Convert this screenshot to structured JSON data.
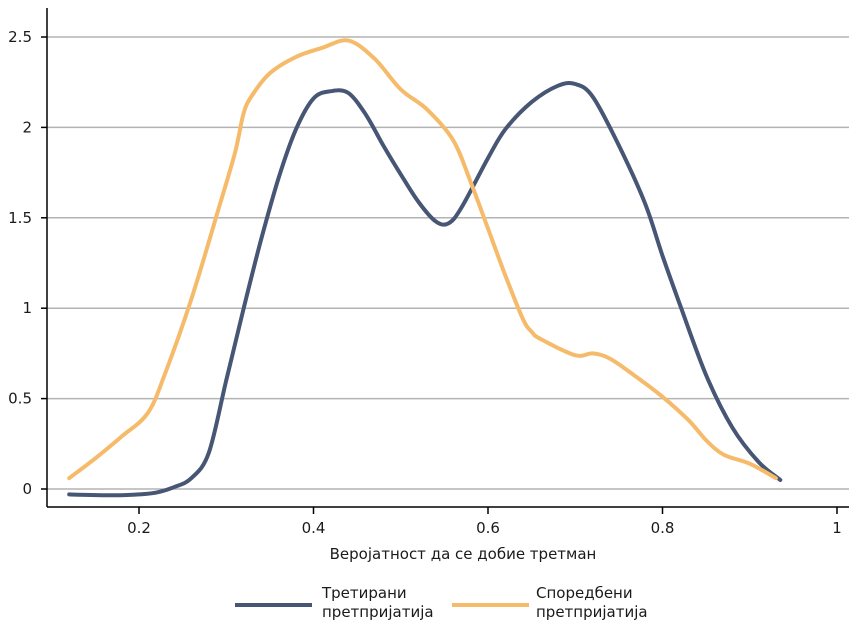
{
  "chart_data": {
    "type": "line",
    "title": "",
    "xlabel": "Веројатност да се добие третман",
    "ylabel": "",
    "xlim": [
      0.12,
      1.0
    ],
    "ylim": [
      -0.1,
      2.7
    ],
    "xticks": [
      {
        "value": 0.2,
        "label": "0.2"
      },
      {
        "value": 0.4,
        "label": "0.4"
      },
      {
        "value": 0.6,
        "label": "0.6"
      },
      {
        "value": 0.8,
        "label": "0.8"
      },
      {
        "value": 1.0,
        "label": "1"
      }
    ],
    "yticks": [
      {
        "value": 0,
        "label": "0"
      },
      {
        "value": 0.5,
        "label": "0.5"
      },
      {
        "value": 1,
        "label": "1"
      },
      {
        "value": 1.5,
        "label": "1.5"
      },
      {
        "value": 2,
        "label": "2"
      },
      {
        "value": 2.5,
        "label": "2.5"
      }
    ],
    "grid": true,
    "legend": "bottom-center",
    "series": [
      {
        "name": "Третирани претпријатија",
        "color": "#465674",
        "x": [
          0.12,
          0.17,
          0.2,
          0.22,
          0.24,
          0.26,
          0.28,
          0.3,
          0.32,
          0.34,
          0.36,
          0.38,
          0.4,
          0.42,
          0.44,
          0.46,
          0.48,
          0.5,
          0.52,
          0.54,
          0.555,
          0.57,
          0.6,
          0.62,
          0.65,
          0.68,
          0.7,
          0.72,
          0.75,
          0.78,
          0.8,
          0.82,
          0.85,
          0.88,
          0.91,
          0.935
        ],
        "y": [
          -0.03,
          -0.035,
          -0.03,
          -0.02,
          0.01,
          0.06,
          0.2,
          0.6,
          1.0,
          1.38,
          1.72,
          1.99,
          2.16,
          2.2,
          2.19,
          2.07,
          1.9,
          1.74,
          1.59,
          1.48,
          1.47,
          1.56,
          1.83,
          1.99,
          2.14,
          2.23,
          2.24,
          2.17,
          1.9,
          1.58,
          1.29,
          1.02,
          0.63,
          0.34,
          0.15,
          0.05
        ]
      },
      {
        "name": "Споредбени претпријатија",
        "color": "#F5BB6B",
        "x": [
          0.12,
          0.15,
          0.18,
          0.21,
          0.23,
          0.26,
          0.29,
          0.31,
          0.32,
          0.33,
          0.35,
          0.38,
          0.41,
          0.44,
          0.47,
          0.5,
          0.53,
          0.56,
          0.58,
          0.6,
          0.62,
          0.64,
          0.65,
          0.66,
          0.7,
          0.72,
          0.74,
          0.77,
          0.8,
          0.83,
          0.85,
          0.87,
          0.9,
          0.93
        ],
        "y": [
          0.06,
          0.17,
          0.29,
          0.42,
          0.64,
          1.05,
          1.53,
          1.86,
          2.08,
          2.18,
          2.3,
          2.39,
          2.44,
          2.48,
          2.38,
          2.21,
          2.1,
          1.93,
          1.7,
          1.44,
          1.18,
          0.94,
          0.87,
          0.83,
          0.74,
          0.75,
          0.72,
          0.62,
          0.51,
          0.38,
          0.27,
          0.19,
          0.14,
          0.06
        ]
      }
    ]
  }
}
